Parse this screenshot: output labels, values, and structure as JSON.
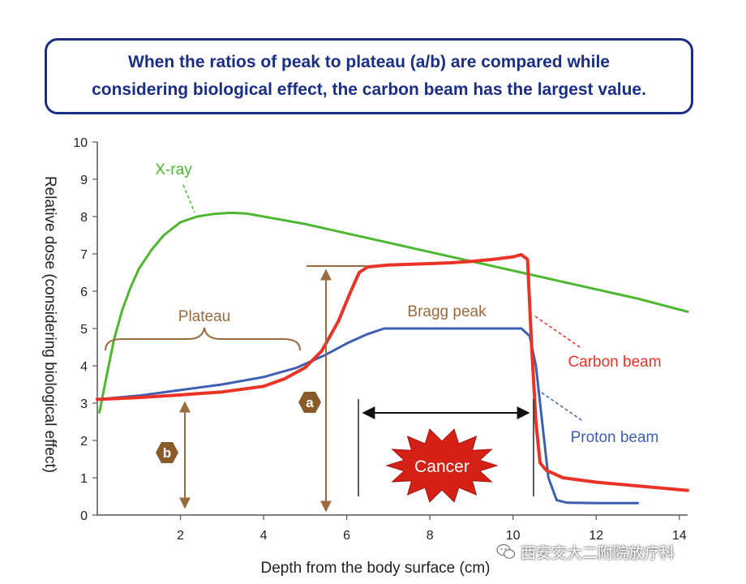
{
  "banner": {
    "line1": "When the ratios of peak to plateau (a/b) are compared while",
    "line2": "considering biological effect, the carbon beam has the largest value."
  },
  "chart_data": {
    "type": "line",
    "xlabel": "Depth from the body surface (cm)",
    "ylabel": "Relative dose (considering biological effect)",
    "xlim": [
      0,
      14.2
    ],
    "ylim": [
      0,
      10
    ],
    "x_ticks": [
      2,
      4,
      6,
      8,
      10,
      12,
      14
    ],
    "y_ticks": [
      0,
      1,
      2,
      3,
      4,
      5,
      6,
      7,
      8,
      9,
      10
    ],
    "series": [
      {
        "name": "X-ray",
        "color": "#4cb82f",
        "x": [
          0.05,
          0.2,
          0.4,
          0.6,
          0.8,
          1.0,
          1.3,
          1.6,
          2.0,
          2.4,
          2.8,
          3.2,
          3.6,
          4.0,
          5.0,
          6.0,
          7.0,
          8.0,
          9.0,
          10.0,
          11.0,
          12.0,
          13.0,
          14.2
        ],
        "y": [
          2.75,
          3.6,
          4.7,
          5.5,
          6.1,
          6.6,
          7.1,
          7.5,
          7.85,
          8.0,
          8.07,
          8.1,
          8.08,
          8.0,
          7.8,
          7.55,
          7.3,
          7.05,
          6.8,
          6.55,
          6.3,
          6.05,
          5.8,
          5.45
        ]
      },
      {
        "name": "Proton beam",
        "color": "#3d5fb3",
        "x": [
          0,
          1.0,
          2.0,
          3.0,
          4.0,
          4.8,
          5.5,
          6.0,
          6.5,
          6.9,
          7.5,
          8.5,
          9.5,
          10.2,
          10.4,
          10.55,
          10.7,
          10.85,
          11.05,
          11.3,
          12.0,
          13.0
        ],
        "y": [
          3.1,
          3.2,
          3.35,
          3.5,
          3.7,
          3.95,
          4.3,
          4.6,
          4.85,
          5.0,
          5.0,
          5.0,
          5.0,
          5.0,
          4.8,
          4.0,
          2.5,
          1.0,
          0.4,
          0.33,
          0.32,
          0.32
        ]
      },
      {
        "name": "Carbon beam",
        "color": "#ea3326",
        "x": [
          0,
          1.0,
          2.0,
          3.0,
          4.0,
          4.5,
          5.0,
          5.4,
          5.8,
          6.1,
          6.3,
          6.5,
          7.0,
          7.5,
          8.0,
          8.5,
          9.0,
          9.5,
          10.0,
          10.2,
          10.35,
          10.45,
          10.55,
          10.65,
          10.8,
          11.2,
          12.0,
          13.0,
          14.2
        ],
        "y": [
          3.1,
          3.15,
          3.22,
          3.3,
          3.45,
          3.65,
          3.95,
          4.4,
          5.2,
          6.0,
          6.5,
          6.65,
          6.7,
          6.72,
          6.74,
          6.76,
          6.8,
          6.85,
          6.92,
          6.98,
          6.85,
          4.5,
          2.5,
          1.4,
          1.2,
          1.0,
          0.88,
          0.78,
          0.66
        ]
      }
    ],
    "annotations": {
      "plateau": "Plateau",
      "bragg_peak": "Bragg peak",
      "a": "a",
      "b": "b",
      "cancer": "Cancer"
    }
  },
  "colors": {
    "banner": "#1a2e86",
    "annotation_brown": "#9a6b3c",
    "hex_badge": "#8a5a28",
    "cancer_fill": "#d42015"
  },
  "watermark": "西安交大二附院放疗科"
}
